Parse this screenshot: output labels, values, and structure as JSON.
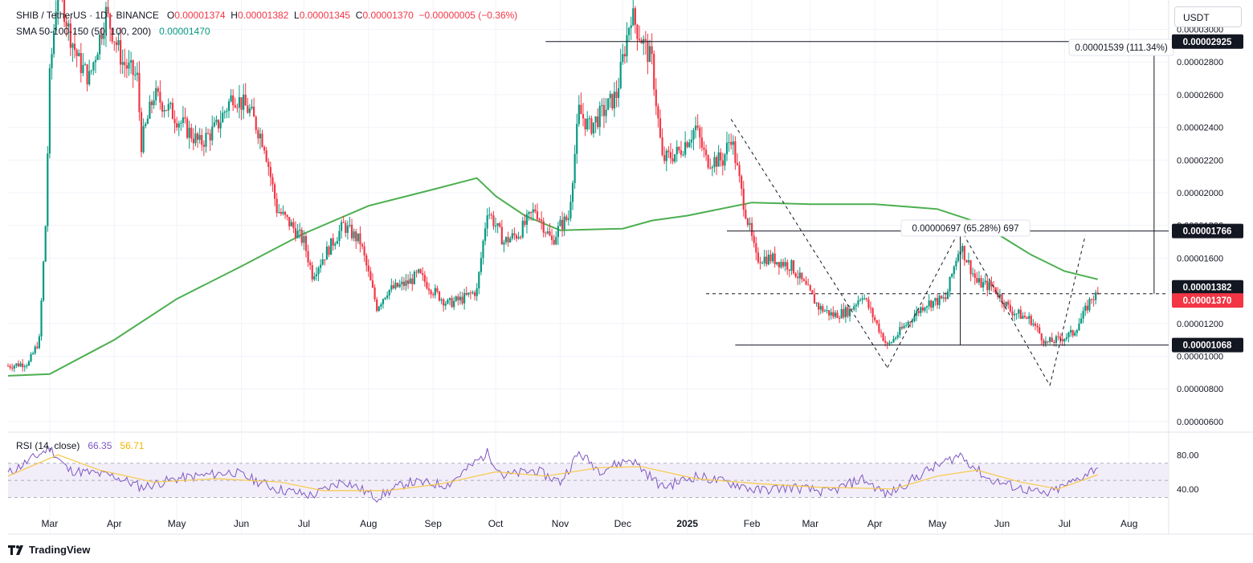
{
  "header": {
    "symbol": "SHIB / TetherUS · 1D · BINANCE",
    "o_label": "O",
    "o_val": "0.00001374",
    "h_label": "H",
    "h_val": "0.00001382",
    "l_label": "L",
    "l_val": "0.00001345",
    "c_label": "C",
    "c_val": "0.00001370",
    "change": "−0.00000005 (−0.36%)",
    "sma_label": "SMA 50-100-150 (50, 100, 200)",
    "sma_val": "0.00001470"
  },
  "currency": "USDT",
  "rsi_header": {
    "label": "RSI (14, close)",
    "rsi_val": "66.35",
    "ma_val": "56.71"
  },
  "brand": "TradingView",
  "colors": {
    "up": "#089981",
    "down": "#f23645",
    "sma": "#4caf50",
    "rsi": "#7e57c2",
    "rsi_ma": "#f7c948",
    "rsi_band": "#ede7f6"
  },
  "annotations": {
    "target_label": "0.00001539 (111.34%)",
    "range_label": "0.00000697 (65.28%) 697"
  },
  "price_tags": [
    {
      "text": "0.00002925",
      "kind": "dark"
    },
    {
      "text": "0.00001766",
      "kind": "dark"
    },
    {
      "text": "0.00001382",
      "kind": "dark"
    },
    {
      "text": "0.00001370",
      "kind": "red"
    },
    {
      "text": "0.00001068",
      "kind": "dark"
    }
  ],
  "chart_data": {
    "type": "candlestick",
    "y_ticks": [
      "0.00003000",
      "0.00002800",
      "0.00002600",
      "0.00002400",
      "0.00002200",
      "0.00002000",
      "0.00001800",
      "0.00001600",
      "0.00001200",
      "0.00001000",
      "0.00000800",
      "0.00000600"
    ],
    "ylim": [
      5.5e-06,
      3.15e-05
    ],
    "x_ticks": [
      {
        "label": "Mar",
        "date": "2024-03-01"
      },
      {
        "label": "Apr",
        "date": "2024-04-01"
      },
      {
        "label": "May",
        "date": "2024-05-01"
      },
      {
        "label": "Jun",
        "date": "2024-06-01"
      },
      {
        "label": "Jul",
        "date": "2024-07-01"
      },
      {
        "label": "Aug",
        "date": "2024-08-01"
      },
      {
        "label": "Sep",
        "date": "2024-09-01"
      },
      {
        "label": "Oct",
        "date": "2024-10-01"
      },
      {
        "label": "Nov",
        "date": "2024-11-01"
      },
      {
        "label": "Dec",
        "date": "2024-12-01"
      },
      {
        "label": "2025",
        "date": "2025-01-01"
      },
      {
        "label": "Feb",
        "date": "2025-02-01"
      },
      {
        "label": "Mar",
        "date": "2025-03-01"
      },
      {
        "label": "Apr",
        "date": "2025-04-01"
      },
      {
        "label": "May",
        "date": "2025-05-01"
      },
      {
        "label": "Jun",
        "date": "2025-06-01"
      },
      {
        "label": "Jul",
        "date": "2025-07-01"
      },
      {
        "label": "Aug",
        "date": "2025-08-01"
      }
    ],
    "close_path": [
      [
        "2024-02-10",
        9.4e-06
      ],
      [
        "2024-02-20",
        9.6e-06
      ],
      [
        "2024-02-25",
        1.1e-05
      ],
      [
        "2024-02-28",
        1.8e-05
      ],
      [
        "2024-03-01",
        2.7e-05
      ],
      [
        "2024-03-05",
        3.3e-05
      ],
      [
        "2024-03-10",
        3e-05
      ],
      [
        "2024-03-15",
        2.8e-05
      ],
      [
        "2024-03-20",
        2.7e-05
      ],
      [
        "2024-03-28",
        3.1e-05
      ],
      [
        "2024-04-05",
        2.8e-05
      ],
      [
        "2024-04-12",
        2.7e-05
      ],
      [
        "2024-04-14",
        2.3e-05
      ],
      [
        "2024-04-20",
        2.6e-05
      ],
      [
        "2024-04-28",
        2.5e-05
      ],
      [
        "2024-05-05",
        2.4e-05
      ],
      [
        "2024-05-12",
        2.3e-05
      ],
      [
        "2024-05-20",
        2.4e-05
      ],
      [
        "2024-05-28",
        2.6e-05
      ],
      [
        "2024-06-05",
        2.5e-05
      ],
      [
        "2024-06-12",
        2.3e-05
      ],
      [
        "2024-06-18",
        1.9e-05
      ],
      [
        "2024-06-25",
        1.8e-05
      ],
      [
        "2024-07-01",
        1.7e-05
      ],
      [
        "2024-07-05",
        1.5e-05
      ],
      [
        "2024-07-15",
        1.7e-05
      ],
      [
        "2024-07-20",
        1.8e-05
      ],
      [
        "2024-07-28",
        1.7e-05
      ],
      [
        "2024-08-05",
        1.3e-05
      ],
      [
        "2024-08-10",
        1.4e-05
      ],
      [
        "2024-08-20",
        1.45e-05
      ],
      [
        "2024-08-25",
        1.5e-05
      ],
      [
        "2024-09-01",
        1.4e-05
      ],
      [
        "2024-09-08",
        1.32e-05
      ],
      [
        "2024-09-15",
        1.35e-05
      ],
      [
        "2024-09-22",
        1.4e-05
      ],
      [
        "2024-09-27",
        1.9e-05
      ],
      [
        "2024-10-01",
        1.8e-05
      ],
      [
        "2024-10-05",
        1.7e-05
      ],
      [
        "2024-10-12",
        1.75e-05
      ],
      [
        "2024-10-20",
        1.9e-05
      ],
      [
        "2024-10-28",
        1.7e-05
      ],
      [
        "2024-11-01",
        1.8e-05
      ],
      [
        "2024-11-05",
        1.85e-05
      ],
      [
        "2024-11-10",
        2.5e-05
      ],
      [
        "2024-11-15",
        2.4e-05
      ],
      [
        "2024-11-22",
        2.5e-05
      ],
      [
        "2024-11-28",
        2.6e-05
      ],
      [
        "2024-12-05",
        3.1e-05
      ],
      [
        "2024-12-08",
        3e-05
      ],
      [
        "2024-12-15",
        2.8e-05
      ],
      [
        "2024-12-20",
        2.2e-05
      ],
      [
        "2024-12-28",
        2.25e-05
      ],
      [
        "2025-01-05",
        2.4e-05
      ],
      [
        "2025-01-10",
        2.2e-05
      ],
      [
        "2025-01-18",
        2.2e-05
      ],
      [
        "2025-01-22",
        2.35e-05
      ],
      [
        "2025-01-27",
        2e-05
      ],
      [
        "2025-02-03",
        1.6e-05
      ],
      [
        "2025-02-10",
        1.6e-05
      ],
      [
        "2025-02-20",
        1.55e-05
      ],
      [
        "2025-02-28",
        1.4e-05
      ],
      [
        "2025-03-05",
        1.3e-05
      ],
      [
        "2025-03-12",
        1.25e-05
      ],
      [
        "2025-03-20",
        1.28e-05
      ],
      [
        "2025-03-26",
        1.38e-05
      ],
      [
        "2025-04-07",
        1.06e-05
      ],
      [
        "2025-04-15",
        1.18e-05
      ],
      [
        "2025-04-25",
        1.32e-05
      ],
      [
        "2025-05-05",
        1.35e-05
      ],
      [
        "2025-05-10",
        1.6e-05
      ],
      [
        "2025-05-12",
        1.68e-05
      ],
      [
        "2025-05-20",
        1.45e-05
      ],
      [
        "2025-05-28",
        1.42e-05
      ],
      [
        "2025-06-05",
        1.28e-05
      ],
      [
        "2025-06-15",
        1.22e-05
      ],
      [
        "2025-06-22",
        1.08e-05
      ],
      [
        "2025-06-28",
        1.1e-05
      ],
      [
        "2025-07-05",
        1.14e-05
      ],
      [
        "2025-07-10",
        1.25e-05
      ],
      [
        "2025-07-14",
        1.36e-05
      ],
      [
        "2025-07-17",
        1.37e-05
      ]
    ],
    "sma_series": [
      [
        "2024-02-10",
        8.8e-06
      ],
      [
        "2024-03-01",
        8.9e-06
      ],
      [
        "2024-04-01",
        1.1e-05
      ],
      [
        "2024-05-01",
        1.35e-05
      ],
      [
        "2024-06-01",
        1.55e-05
      ],
      [
        "2024-07-01",
        1.75e-05
      ],
      [
        "2024-08-01",
        1.92e-05
      ],
      [
        "2024-09-01",
        2.02e-05
      ],
      [
        "2024-09-22",
        2.09e-05
      ],
      [
        "2024-10-01",
        1.98e-05
      ],
      [
        "2024-10-15",
        1.86e-05
      ],
      [
        "2024-11-01",
        1.77e-05
      ],
      [
        "2024-12-01",
        1.78e-05
      ],
      [
        "2024-12-15",
        1.83e-05
      ],
      [
        "2025-01-01",
        1.86e-05
      ],
      [
        "2025-02-01",
        1.94e-05
      ],
      [
        "2025-03-01",
        1.93e-05
      ],
      [
        "2025-04-01",
        1.93e-05
      ],
      [
        "2025-05-01",
        1.9e-05
      ],
      [
        "2025-05-20",
        1.82e-05
      ],
      [
        "2025-06-01",
        1.73e-05
      ],
      [
        "2025-06-15",
        1.62e-05
      ],
      [
        "2025-07-01",
        1.52e-05
      ],
      [
        "2025-07-17",
        1.47e-05
      ]
    ],
    "levels": [
      {
        "value": 2.925e-05,
        "from": "2024-10-25",
        "to": "2025-08-20",
        "style": "solid"
      },
      {
        "value": 1.766e-05,
        "from": "2025-01-20",
        "to": "2025-08-20",
        "style": "solid"
      },
      {
        "value": 1.382e-05,
        "from": "2025-01-10",
        "to": "2025-08-20",
        "style": "dashed"
      },
      {
        "value": 1.068e-05,
        "from": "2025-01-24",
        "to": "2025-08-20",
        "style": "solid"
      }
    ],
    "pattern_lines": [
      [
        [
          "2025-01-22",
          2.45e-05
        ],
        [
          "2025-04-07",
          9.3e-06
        ]
      ],
      [
        [
          "2025-04-07",
          9.3e-06
        ],
        [
          "2025-05-12",
          1.78e-05
        ]
      ],
      [
        [
          "2025-05-12",
          1.78e-05
        ],
        [
          "2025-06-24",
          8.2e-06
        ]
      ],
      [
        [
          "2025-06-24",
          8.2e-06
        ],
        [
          "2025-07-11",
          1.74e-05
        ]
      ]
    ],
    "rsi": {
      "ylim": [
        20,
        100
      ],
      "levels": [
        70,
        50,
        30
      ],
      "y_ticks": [
        "80.00",
        "40.00"
      ],
      "rsi_series": [
        [
          "2024-02-10",
          58
        ],
        [
          "2024-03-01",
          88
        ],
        [
          "2024-03-10",
          62
        ],
        [
          "2024-04-01",
          55
        ],
        [
          "2024-04-14",
          42
        ],
        [
          "2024-05-01",
          52
        ],
        [
          "2024-05-28",
          60
        ],
        [
          "2024-06-18",
          40
        ],
        [
          "2024-07-05",
          32
        ],
        [
          "2024-07-20",
          50
        ],
        [
          "2024-08-05",
          30
        ],
        [
          "2024-08-20",
          48
        ],
        [
          "2024-09-08",
          45
        ],
        [
          "2024-09-27",
          82
        ],
        [
          "2024-10-05",
          55
        ],
        [
          "2024-10-20",
          62
        ],
        [
          "2024-11-01",
          48
        ],
        [
          "2024-11-10",
          82
        ],
        [
          "2024-11-20",
          62
        ],
        [
          "2024-12-05",
          75
        ],
        [
          "2024-12-20",
          42
        ],
        [
          "2025-01-05",
          55
        ],
        [
          "2025-01-27",
          44
        ],
        [
          "2025-02-03",
          38
        ],
        [
          "2025-02-20",
          42
        ],
        [
          "2025-03-10",
          36
        ],
        [
          "2025-03-26",
          52
        ],
        [
          "2025-04-07",
          33
        ],
        [
          "2025-04-25",
          60
        ],
        [
          "2025-05-12",
          80
        ],
        [
          "2025-05-25",
          52
        ],
        [
          "2025-06-05",
          44
        ],
        [
          "2025-06-22",
          33
        ],
        [
          "2025-07-05",
          48
        ],
        [
          "2025-07-17",
          66
        ]
      ],
      "ma_series": [
        [
          "2024-02-10",
          55
        ],
        [
          "2024-03-05",
          80
        ],
        [
          "2024-03-25",
          62
        ],
        [
          "2024-04-20",
          48
        ],
        [
          "2024-05-20",
          52
        ],
        [
          "2024-06-20",
          48
        ],
        [
          "2024-07-10",
          38
        ],
        [
          "2024-08-10",
          38
        ],
        [
          "2024-09-05",
          46
        ],
        [
          "2024-10-01",
          60
        ],
        [
          "2024-10-25",
          55
        ],
        [
          "2024-11-20",
          65
        ],
        [
          "2024-12-10",
          66
        ],
        [
          "2025-01-05",
          52
        ],
        [
          "2025-02-05",
          46
        ],
        [
          "2025-03-05",
          42
        ],
        [
          "2025-04-10",
          40
        ],
        [
          "2025-05-01",
          55
        ],
        [
          "2025-05-20",
          62
        ],
        [
          "2025-06-10",
          48
        ],
        [
          "2025-06-28",
          40
        ],
        [
          "2025-07-17",
          56.7
        ]
      ]
    }
  }
}
